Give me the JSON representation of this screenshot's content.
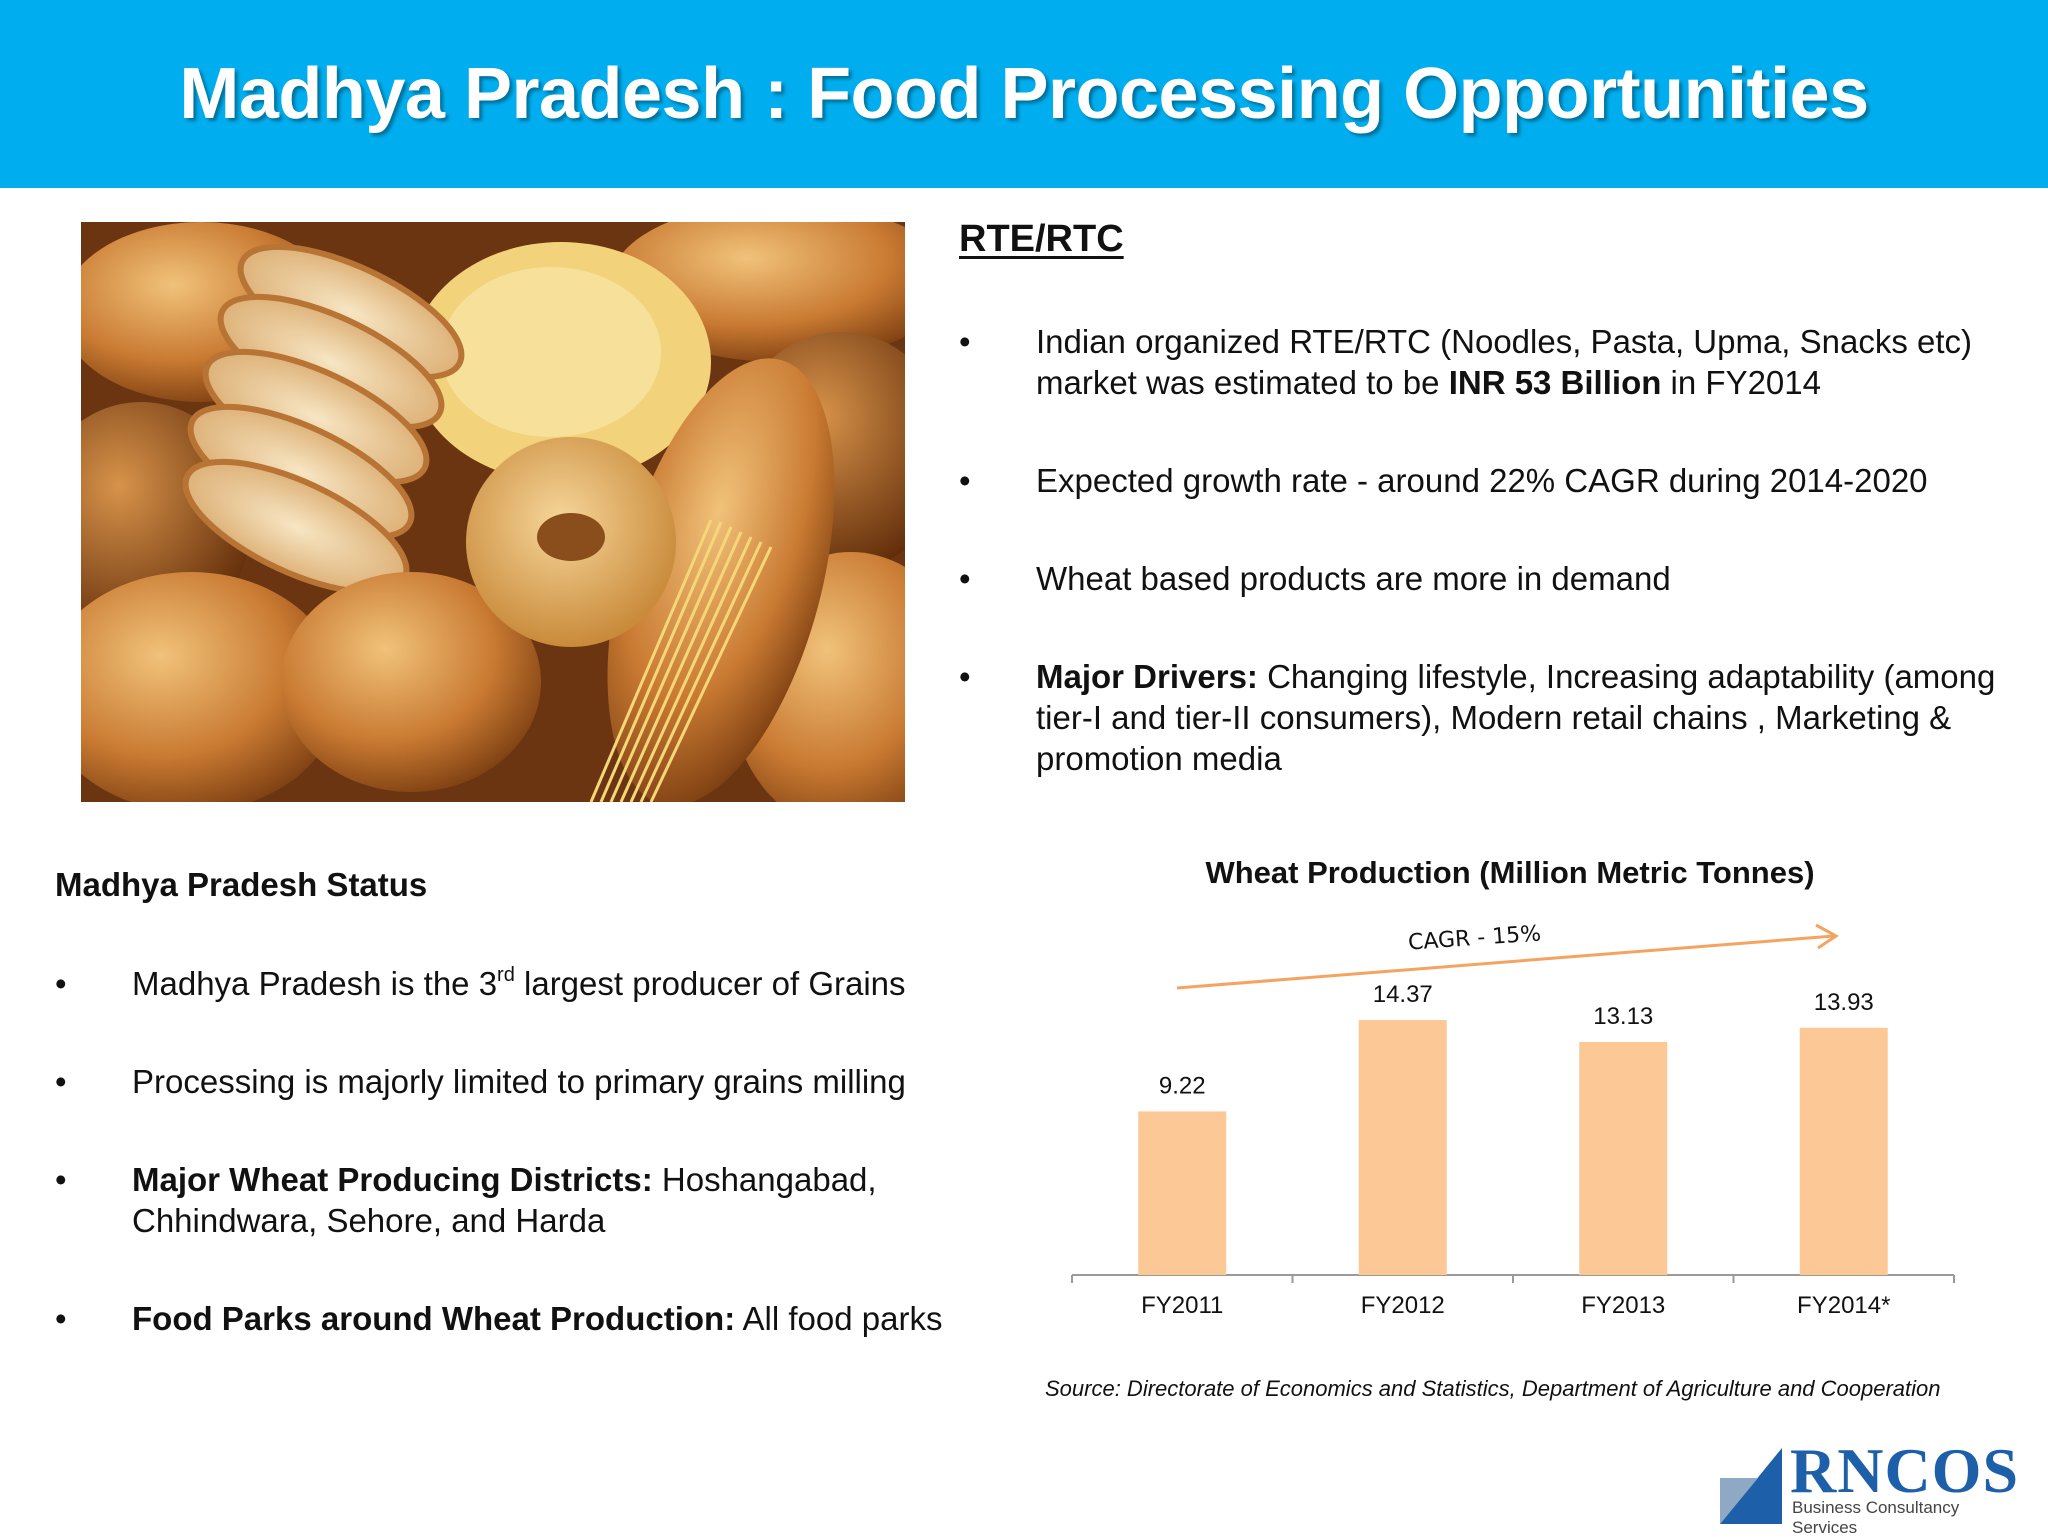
{
  "header": {
    "title": "Madhya Pradesh : Food Processing Opportunities"
  },
  "rte": {
    "title": "RTE/RTC",
    "bullets": [
      {
        "bold": "",
        "text_pre": "Indian organized RTE/RTC (Noodles, Pasta, Upma, Snacks etc) market was estimated to be ",
        "strong": "INR 53 Billion",
        "text_post": " in FY2014"
      },
      {
        "text": "Expected growth rate - around 22% CAGR during 2014-2020"
      },
      {
        "text": "Wheat based products are more in demand"
      },
      {
        "bold": "Major Drivers:",
        "text": " Changing lifestyle, Increasing adaptability (among tier-I and tier-II consumers), Modern retail chains , Marketing & promotion media"
      }
    ]
  },
  "mp_status": {
    "title": "Madhya Pradesh Status",
    "bullets": [
      {
        "pre": "Madhya Pradesh is the 3",
        "sup": "rd",
        "post": " largest producer of Grains"
      },
      {
        "text": "Processing is majorly limited to primary grains milling"
      },
      {
        "bold": "Major Wheat Producing Districts:",
        "text": " Hoshangabad, Chhindwara, Sehore, and Harda"
      },
      {
        "bold": "Food Parks around Wheat Production:",
        "text": " All food parks"
      }
    ]
  },
  "bullet_glyph": "•",
  "chart_data": {
    "type": "bar",
    "title": "Wheat Production (Million Metric Tonnes)",
    "categories": [
      "FY2011",
      "FY2012",
      "FY2013",
      "FY2014*"
    ],
    "values": [
      9.22,
      14.37,
      13.13,
      13.93
    ],
    "ylim": [
      0,
      14.37
    ],
    "bar_color": "#fcc996",
    "annotation": {
      "text": "CAGR - 15%",
      "color": "#f4a460"
    },
    "grid": false,
    "legend": "none"
  },
  "source": "Source: Directorate of Economics and Statistics, Department of Agriculture and Cooperation",
  "logo": {
    "name": "RNCOS",
    "tagline": "Business Consultancy Services",
    "color": "#1d5fa8"
  }
}
